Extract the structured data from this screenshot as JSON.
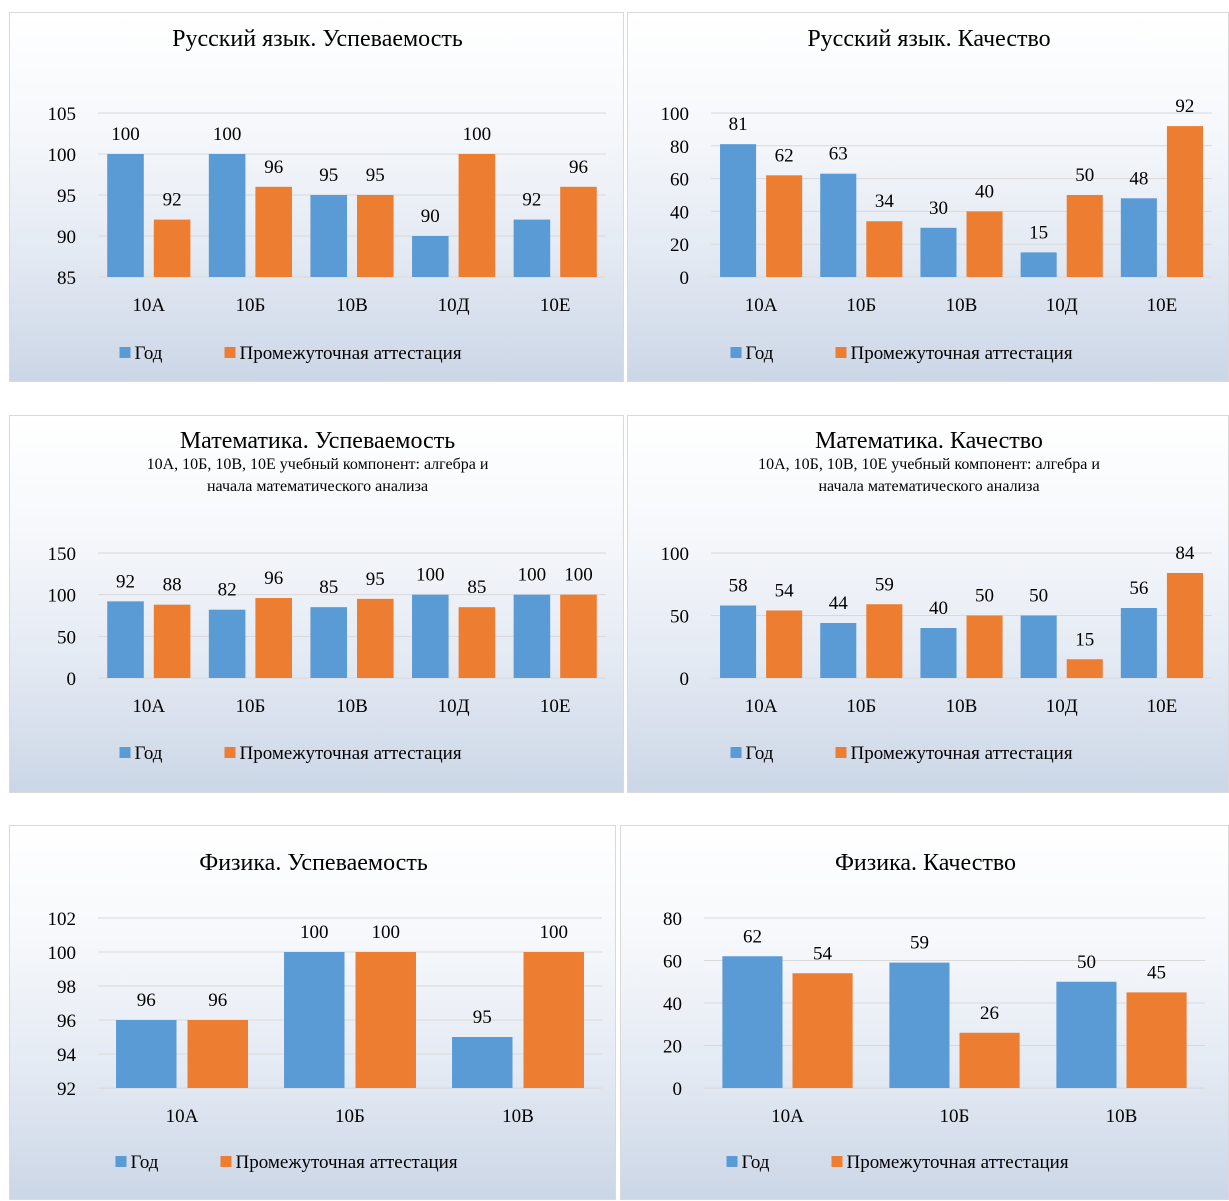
{
  "chart_data": [
    {
      "type": "bar",
      "title": "Русский язык. Успеваемость",
      "categories": [
        "10А",
        "10Б",
        "10В",
        "10Д",
        "10Е"
      ],
      "series": [
        {
          "name": "Год",
          "values": [
            100,
            100,
            95,
            90,
            92
          ]
        },
        {
          "name": "Промежуточная аттестация",
          "values": [
            92,
            96,
            95,
            100,
            96
          ]
        }
      ],
      "ylim": [
        85,
        105
      ],
      "yticks": [
        85,
        90,
        95,
        100,
        105
      ],
      "grid": true,
      "legend": "bottom"
    },
    {
      "type": "bar",
      "title": "Русский язык. Качество",
      "categories": [
        "10А",
        "10Б",
        "10В",
        "10Д",
        "10Е"
      ],
      "series": [
        {
          "name": "Год",
          "values": [
            81,
            63,
            30,
            15,
            48
          ]
        },
        {
          "name": "Промежуточная аттестация",
          "values": [
            62,
            34,
            40,
            50,
            92
          ]
        }
      ],
      "ylim": [
        0,
        100
      ],
      "yticks": [
        0,
        20,
        40,
        60,
        80,
        100
      ],
      "grid": true,
      "legend": "bottom"
    },
    {
      "type": "bar",
      "title": "Математика. Успеваемость",
      "subtitle": [
        "10А, 10Б, 10В, 10Е учебный компонент: алгебра и",
        "начала математического анализа"
      ],
      "categories": [
        "10А",
        "10Б",
        "10В",
        "10Д",
        "10Е"
      ],
      "series": [
        {
          "name": "Год",
          "values": [
            92,
            82,
            85,
            100,
            100
          ]
        },
        {
          "name": "Промежуточная аттестация",
          "values": [
            88,
            96,
            95,
            85,
            100
          ]
        }
      ],
      "ylim": [
        0,
        150
      ],
      "yticks": [
        0,
        50,
        100,
        150
      ],
      "grid": true,
      "legend": "bottom"
    },
    {
      "type": "bar",
      "title": "Математика. Качество",
      "subtitle": [
        "10А, 10Б, 10В, 10Е учебный компонент: алгебра и",
        "начала математического анализа"
      ],
      "categories": [
        "10А",
        "10Б",
        "10В",
        "10Д",
        "10Е"
      ],
      "series": [
        {
          "name": "Год",
          "values": [
            58,
            44,
            40,
            50,
            56
          ]
        },
        {
          "name": "Промежуточная аттестация",
          "values": [
            54,
            59,
            50,
            15,
            84
          ]
        }
      ],
      "ylim": [
        0,
        100
      ],
      "yticks": [
        0,
        50,
        100
      ],
      "grid": true,
      "legend": "bottom"
    },
    {
      "type": "bar",
      "title": "Физика. Успеваемость",
      "categories": [
        "10А",
        "10Б",
        "10В"
      ],
      "series": [
        {
          "name": "Год",
          "values": [
            96,
            100,
            95
          ]
        },
        {
          "name": "Промежуточная аттестация",
          "values": [
            96,
            100,
            100
          ]
        }
      ],
      "ylim": [
        92,
        102
      ],
      "yticks": [
        92,
        94,
        96,
        98,
        100,
        102
      ],
      "grid": true,
      "legend": "bottom"
    },
    {
      "type": "bar",
      "title": "Физика. Качество",
      "categories": [
        "10А",
        "10Б",
        "10В"
      ],
      "series": [
        {
          "name": "Год",
          "values": [
            62,
            59,
            50
          ]
        },
        {
          "name": "Промежуточная аттестация",
          "values": [
            54,
            26,
            45
          ]
        }
      ],
      "ylim": [
        0,
        80
      ],
      "yticks": [
        0,
        20,
        40,
        60,
        80
      ],
      "grid": true,
      "legend": "bottom"
    }
  ],
  "colors": {
    "series": [
      "#5b9bd5",
      "#ed7d31"
    ]
  }
}
